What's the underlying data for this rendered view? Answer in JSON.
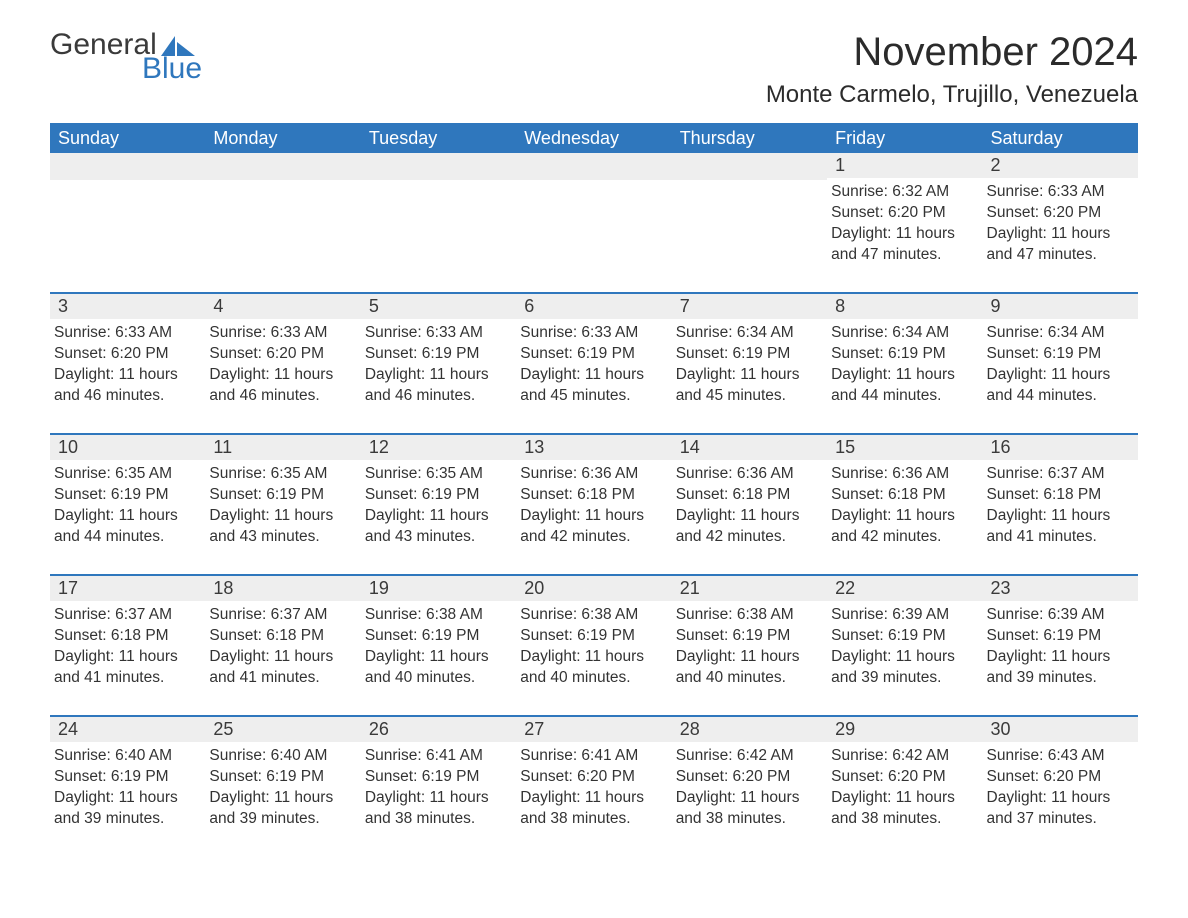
{
  "logo": {
    "word1": "General",
    "word2": "Blue",
    "sail_color": "#2f77bd"
  },
  "title": "November 2024",
  "location": "Monte Carmelo, Trujillo, Venezuela",
  "colors": {
    "header_bg": "#2f77bd",
    "header_text": "#ffffff",
    "daynum_bg": "#eeeeee",
    "text": "#333333",
    "rule": "#2f77bd"
  },
  "fonts": {
    "title_pt": 40,
    "location_pt": 24,
    "dayhead_pt": 18,
    "daynum_pt": 18,
    "body_pt": 15.5
  },
  "daysOfWeek": [
    "Sunday",
    "Monday",
    "Tuesday",
    "Wednesday",
    "Thursday",
    "Friday",
    "Saturday"
  ],
  "weeks": [
    [
      null,
      null,
      null,
      null,
      null,
      {
        "n": "1",
        "sunrise": "Sunrise: 6:32 AM",
        "sunset": "Sunset: 6:20 PM",
        "dl1": "Daylight: 11 hours",
        "dl2": "and 47 minutes."
      },
      {
        "n": "2",
        "sunrise": "Sunrise: 6:33 AM",
        "sunset": "Sunset: 6:20 PM",
        "dl1": "Daylight: 11 hours",
        "dl2": "and 47 minutes."
      }
    ],
    [
      {
        "n": "3",
        "sunrise": "Sunrise: 6:33 AM",
        "sunset": "Sunset: 6:20 PM",
        "dl1": "Daylight: 11 hours",
        "dl2": "and 46 minutes."
      },
      {
        "n": "4",
        "sunrise": "Sunrise: 6:33 AM",
        "sunset": "Sunset: 6:20 PM",
        "dl1": "Daylight: 11 hours",
        "dl2": "and 46 minutes."
      },
      {
        "n": "5",
        "sunrise": "Sunrise: 6:33 AM",
        "sunset": "Sunset: 6:19 PM",
        "dl1": "Daylight: 11 hours",
        "dl2": "and 46 minutes."
      },
      {
        "n": "6",
        "sunrise": "Sunrise: 6:33 AM",
        "sunset": "Sunset: 6:19 PM",
        "dl1": "Daylight: 11 hours",
        "dl2": "and 45 minutes."
      },
      {
        "n": "7",
        "sunrise": "Sunrise: 6:34 AM",
        "sunset": "Sunset: 6:19 PM",
        "dl1": "Daylight: 11 hours",
        "dl2": "and 45 minutes."
      },
      {
        "n": "8",
        "sunrise": "Sunrise: 6:34 AM",
        "sunset": "Sunset: 6:19 PM",
        "dl1": "Daylight: 11 hours",
        "dl2": "and 44 minutes."
      },
      {
        "n": "9",
        "sunrise": "Sunrise: 6:34 AM",
        "sunset": "Sunset: 6:19 PM",
        "dl1": "Daylight: 11 hours",
        "dl2": "and 44 minutes."
      }
    ],
    [
      {
        "n": "10",
        "sunrise": "Sunrise: 6:35 AM",
        "sunset": "Sunset: 6:19 PM",
        "dl1": "Daylight: 11 hours",
        "dl2": "and 44 minutes."
      },
      {
        "n": "11",
        "sunrise": "Sunrise: 6:35 AM",
        "sunset": "Sunset: 6:19 PM",
        "dl1": "Daylight: 11 hours",
        "dl2": "and 43 minutes."
      },
      {
        "n": "12",
        "sunrise": "Sunrise: 6:35 AM",
        "sunset": "Sunset: 6:19 PM",
        "dl1": "Daylight: 11 hours",
        "dl2": "and 43 minutes."
      },
      {
        "n": "13",
        "sunrise": "Sunrise: 6:36 AM",
        "sunset": "Sunset: 6:18 PM",
        "dl1": "Daylight: 11 hours",
        "dl2": "and 42 minutes."
      },
      {
        "n": "14",
        "sunrise": "Sunrise: 6:36 AM",
        "sunset": "Sunset: 6:18 PM",
        "dl1": "Daylight: 11 hours",
        "dl2": "and 42 minutes."
      },
      {
        "n": "15",
        "sunrise": "Sunrise: 6:36 AM",
        "sunset": "Sunset: 6:18 PM",
        "dl1": "Daylight: 11 hours",
        "dl2": "and 42 minutes."
      },
      {
        "n": "16",
        "sunrise": "Sunrise: 6:37 AM",
        "sunset": "Sunset: 6:18 PM",
        "dl1": "Daylight: 11 hours",
        "dl2": "and 41 minutes."
      }
    ],
    [
      {
        "n": "17",
        "sunrise": "Sunrise: 6:37 AM",
        "sunset": "Sunset: 6:18 PM",
        "dl1": "Daylight: 11 hours",
        "dl2": "and 41 minutes."
      },
      {
        "n": "18",
        "sunrise": "Sunrise: 6:37 AM",
        "sunset": "Sunset: 6:18 PM",
        "dl1": "Daylight: 11 hours",
        "dl2": "and 41 minutes."
      },
      {
        "n": "19",
        "sunrise": "Sunrise: 6:38 AM",
        "sunset": "Sunset: 6:19 PM",
        "dl1": "Daylight: 11 hours",
        "dl2": "and 40 minutes."
      },
      {
        "n": "20",
        "sunrise": "Sunrise: 6:38 AM",
        "sunset": "Sunset: 6:19 PM",
        "dl1": "Daylight: 11 hours",
        "dl2": "and 40 minutes."
      },
      {
        "n": "21",
        "sunrise": "Sunrise: 6:38 AM",
        "sunset": "Sunset: 6:19 PM",
        "dl1": "Daylight: 11 hours",
        "dl2": "and 40 minutes."
      },
      {
        "n": "22",
        "sunrise": "Sunrise: 6:39 AM",
        "sunset": "Sunset: 6:19 PM",
        "dl1": "Daylight: 11 hours",
        "dl2": "and 39 minutes."
      },
      {
        "n": "23",
        "sunrise": "Sunrise: 6:39 AM",
        "sunset": "Sunset: 6:19 PM",
        "dl1": "Daylight: 11 hours",
        "dl2": "and 39 minutes."
      }
    ],
    [
      {
        "n": "24",
        "sunrise": "Sunrise: 6:40 AM",
        "sunset": "Sunset: 6:19 PM",
        "dl1": "Daylight: 11 hours",
        "dl2": "and 39 minutes."
      },
      {
        "n": "25",
        "sunrise": "Sunrise: 6:40 AM",
        "sunset": "Sunset: 6:19 PM",
        "dl1": "Daylight: 11 hours",
        "dl2": "and 39 minutes."
      },
      {
        "n": "26",
        "sunrise": "Sunrise: 6:41 AM",
        "sunset": "Sunset: 6:19 PM",
        "dl1": "Daylight: 11 hours",
        "dl2": "and 38 minutes."
      },
      {
        "n": "27",
        "sunrise": "Sunrise: 6:41 AM",
        "sunset": "Sunset: 6:20 PM",
        "dl1": "Daylight: 11 hours",
        "dl2": "and 38 minutes."
      },
      {
        "n": "28",
        "sunrise": "Sunrise: 6:42 AM",
        "sunset": "Sunset: 6:20 PM",
        "dl1": "Daylight: 11 hours",
        "dl2": "and 38 minutes."
      },
      {
        "n": "29",
        "sunrise": "Sunrise: 6:42 AM",
        "sunset": "Sunset: 6:20 PM",
        "dl1": "Daylight: 11 hours",
        "dl2": "and 38 minutes."
      },
      {
        "n": "30",
        "sunrise": "Sunrise: 6:43 AM",
        "sunset": "Sunset: 6:20 PM",
        "dl1": "Daylight: 11 hours",
        "dl2": "and 37 minutes."
      }
    ]
  ]
}
